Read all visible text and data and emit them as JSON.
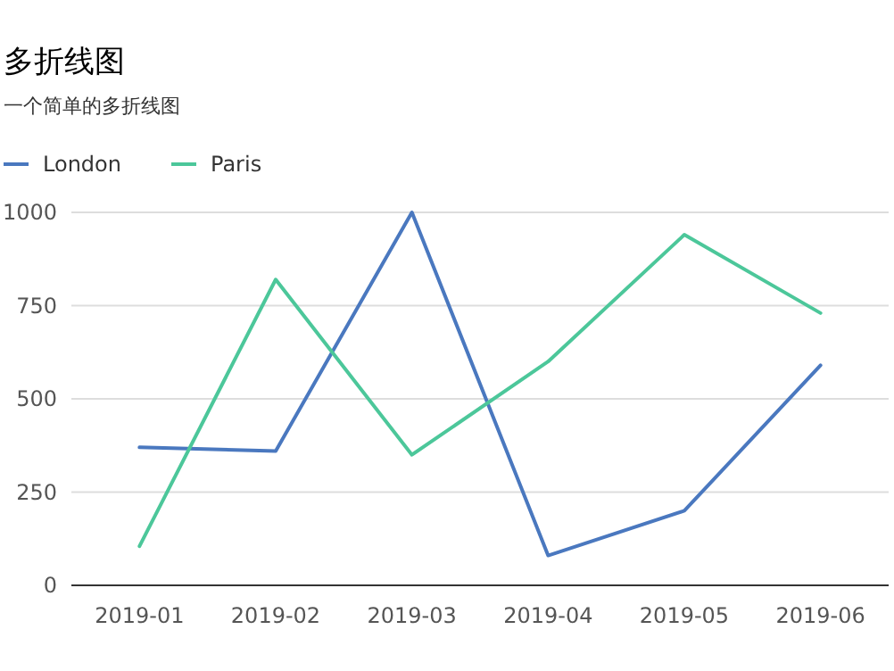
{
  "chart_data": {
    "type": "line",
    "title": "多折线图",
    "subtitle": "一个简单的多折线图",
    "categories": [
      "2019-01",
      "2019-02",
      "2019-03",
      "2019-04",
      "2019-05",
      "2019-06"
    ],
    "series": [
      {
        "name": "London",
        "color": "#4a78bf",
        "values": [
          370,
          360,
          1000,
          80,
          200,
          590
        ]
      },
      {
        "name": "Paris",
        "color": "#4cc79a",
        "values": [
          105,
          820,
          350,
          600,
          940,
          730
        ]
      }
    ],
    "ylim": [
      0,
      1000
    ],
    "yticks": [
      0,
      250,
      500,
      750,
      1000
    ],
    "grid": "y",
    "legend": "top left",
    "marker": "none",
    "line_style": "solid"
  }
}
